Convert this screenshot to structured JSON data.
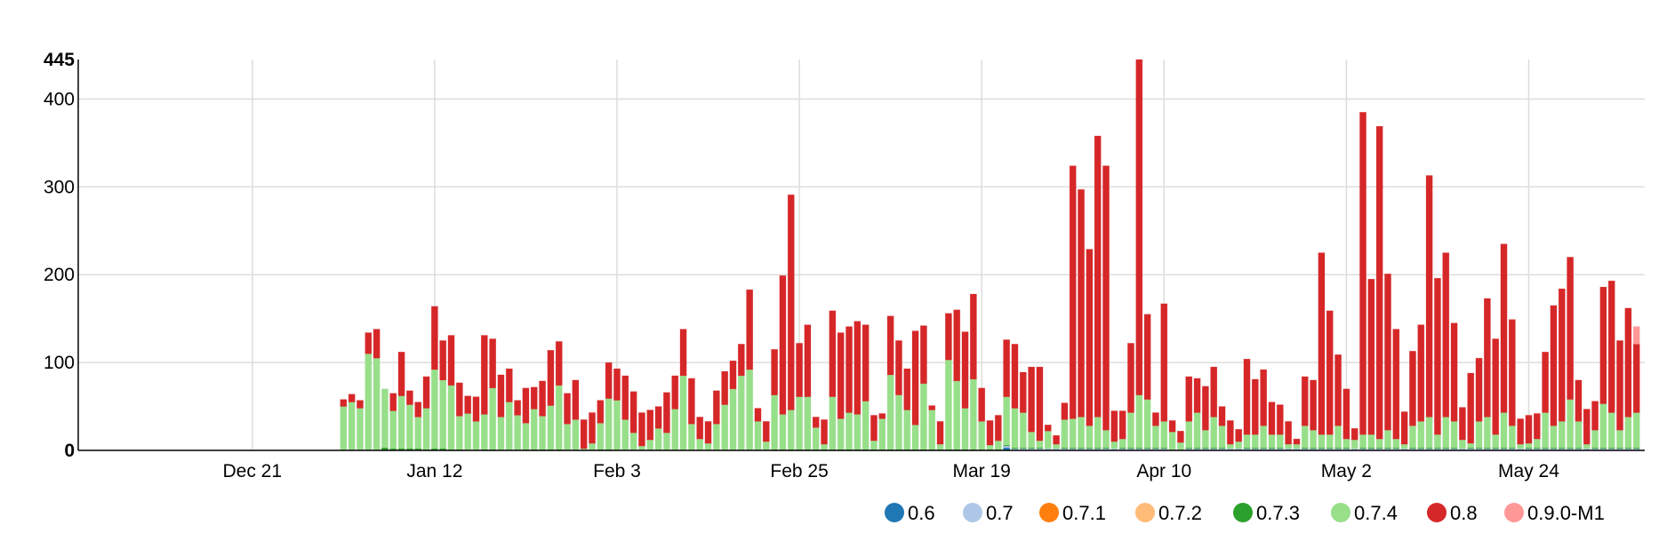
{
  "chart_data": {
    "type": "bar",
    "stacked": true,
    "title": "",
    "xlabel": "",
    "ylabel": "",
    "ylim": [
      0,
      445
    ],
    "y_ticks": [
      0,
      100,
      200,
      300,
      400,
      445
    ],
    "y_tick_labels": [
      "0",
      "100",
      "200",
      "300",
      "400",
      "445"
    ],
    "x_start_date": "2014-11-30",
    "x_end_date": "2015-06-07",
    "x_ticks": [
      {
        "date": "2014-12-21",
        "label": "Dec 21"
      },
      {
        "date": "2015-01-12",
        "label": "Jan 12"
      },
      {
        "date": "2015-02-03",
        "label": "Feb 3"
      },
      {
        "date": "2015-02-25",
        "label": "Feb 25"
      },
      {
        "date": "2015-03-19",
        "label": "Mar 19"
      },
      {
        "date": "2015-04-10",
        "label": "Apr 10"
      },
      {
        "date": "2015-05-02",
        "label": "May 2"
      },
      {
        "date": "2015-05-24",
        "label": "May 24"
      }
    ],
    "grid": true,
    "legend_position": "bottom-right",
    "series_colors": {
      "0.6": "#1f77b4",
      "0.7": "#aec7e8",
      "0.7.1": "#ff7f0e",
      "0.7.2": "#ffbb78",
      "0.7.3": "#2ca02c",
      "0.7.4": "#98df8a",
      "0.8": "#d62728",
      "0.9.0-M1": "#ff9896"
    },
    "series_order": [
      "0.6",
      "0.7",
      "0.7.1",
      "0.7.2",
      "0.7.3",
      "0.7.4",
      "0.8",
      "0.9.0-M1"
    ],
    "points": [
      {
        "date": "2015-01-01",
        "0.7.4": 50,
        "0.8": 8
      },
      {
        "date": "2015-01-02",
        "0.7.4": 55,
        "0.8": 9
      },
      {
        "date": "2015-01-03",
        "0.7.4": 48,
        "0.8": 9
      },
      {
        "date": "2015-01-04",
        "0.7.4": 110,
        "0.8": 24
      },
      {
        "date": "2015-01-05",
        "0.7.4": 105,
        "0.8": 33
      },
      {
        "date": "2015-01-06",
        "0.7.3": 3,
        "0.7.4": 67,
        "0.8": 0
      },
      {
        "date": "2015-01-07",
        "0.7.3": 2,
        "0.7.4": 43,
        "0.8": 20
      },
      {
        "date": "2015-01-08",
        "0.7.3": 2,
        "0.7.4": 60,
        "0.8": 50
      },
      {
        "date": "2015-01-09",
        "0.7.3": 2,
        "0.7.4": 50,
        "0.8": 16
      },
      {
        "date": "2015-01-10",
        "0.7.3": 2,
        "0.7.4": 36,
        "0.8": 17
      },
      {
        "date": "2015-01-11",
        "0.7.3": 1,
        "0.7.4": 47,
        "0.8": 36
      },
      {
        "date": "2015-01-12",
        "0.7.3": 2,
        "0.7.4": 90,
        "0.8": 72
      },
      {
        "date": "2015-01-13",
        "0.7.3": 2,
        "0.7.4": 78,
        "0.8": 45
      },
      {
        "date": "2015-01-14",
        "0.7.3": 1,
        "0.7.4": 73,
        "0.8": 57
      },
      {
        "date": "2015-01-15",
        "0.7.3": 1,
        "0.7.4": 38,
        "0.8": 38
      },
      {
        "date": "2015-01-16",
        "0.7.4": 42,
        "0.8": 20
      },
      {
        "date": "2015-01-17",
        "0.7.4": 33,
        "0.8": 28
      },
      {
        "date": "2015-01-18",
        "0.7.3": 1,
        "0.7.4": 40,
        "0.8": 90
      },
      {
        "date": "2015-01-19",
        "0.7.3": 1,
        "0.7.4": 70,
        "0.8": 56
      },
      {
        "date": "2015-01-20",
        "0.7.4": 38,
        "0.8": 48
      },
      {
        "date": "2015-01-21",
        "0.7.4": 55,
        "0.8": 38
      },
      {
        "date": "2015-01-22",
        "0.7.4": 40,
        "0.8": 17
      },
      {
        "date": "2015-01-23",
        "0.7.3": 1,
        "0.7.4": 30,
        "0.8": 40
      },
      {
        "date": "2015-01-24",
        "0.7.3": 1,
        "0.7.4": 46,
        "0.8": 25
      },
      {
        "date": "2015-01-25",
        "0.7.3": 1,
        "0.7.4": 38,
        "0.8": 40
      },
      {
        "date": "2015-01-26",
        "0.7.3": 1,
        "0.7.4": 50,
        "0.8": 63
      },
      {
        "date": "2015-01-27",
        "0.7.3": 1,
        "0.7.4": 73,
        "0.8": 50
      },
      {
        "date": "2015-01-28",
        "0.7.4": 30,
        "0.8": 35
      },
      {
        "date": "2015-01-29",
        "0.7.4": 35,
        "0.8": 45
      },
      {
        "date": "2015-01-30",
        "0.7.4": 2,
        "0.8": 33
      },
      {
        "date": "2015-01-31",
        "0.7.4": 8,
        "0.8": 35
      },
      {
        "date": "2015-02-01",
        "0.7.3": 1,
        "0.7.4": 30,
        "0.8": 26
      },
      {
        "date": "2015-02-02",
        "0.7.3": 1,
        "0.7.4": 58,
        "0.8": 41
      },
      {
        "date": "2015-02-03",
        "0.7.4": 57,
        "0.8": 36
      },
      {
        "date": "2015-02-04",
        "0.7.4": 35,
        "0.8": 50
      },
      {
        "date": "2015-02-05",
        "0.7.4": 20,
        "0.8": 47
      },
      {
        "date": "2015-02-06",
        "0.7.4": 5,
        "0.8": 38
      },
      {
        "date": "2015-02-07",
        "0.7.4": 12,
        "0.8": 34
      },
      {
        "date": "2015-02-08",
        "0.7.4": 25,
        "0.8": 25
      },
      {
        "date": "2015-02-09",
        "0.7.4": 20,
        "0.8": 46
      },
      {
        "date": "2015-02-10",
        "0.7.4": 47,
        "0.8": 38
      },
      {
        "date": "2015-02-11",
        "0.7.4": 85,
        "0.8": 53
      },
      {
        "date": "2015-02-12",
        "0.7.4": 30,
        "0.8": 52
      },
      {
        "date": "2015-02-13",
        "0.7.4": 13,
        "0.8": 25
      },
      {
        "date": "2015-02-14",
        "0.7.4": 8,
        "0.8": 25
      },
      {
        "date": "2015-02-15",
        "0.7.4": 30,
        "0.8": 38
      },
      {
        "date": "2015-02-16",
        "0.7.4": 52,
        "0.8": 38
      },
      {
        "date": "2015-02-17",
        "0.7.4": 70,
        "0.8": 32
      },
      {
        "date": "2015-02-18",
        "0.7.4": 85,
        "0.8": 36
      },
      {
        "date": "2015-02-19",
        "0.7.4": 92,
        "0.8": 91
      },
      {
        "date": "2015-02-20",
        "0.7.4": 33,
        "0.8": 15
      },
      {
        "date": "2015-02-21",
        "0.7.4": 10,
        "0.8": 23
      },
      {
        "date": "2015-02-22",
        "0.7.3": 1,
        "0.7.4": 62,
        "0.8": 52
      },
      {
        "date": "2015-02-23",
        "0.7.3": 1,
        "0.7.4": 40,
        "0.8": 158
      },
      {
        "date": "2015-02-24",
        "0.7.3": 1,
        "0.7.4": 45,
        "0.8": 245
      },
      {
        "date": "2015-02-25",
        "0.7.3": 1,
        "0.7.4": 60,
        "0.8": 61
      },
      {
        "date": "2015-02-26",
        "0.7.3": 1,
        "0.7.4": 60,
        "0.8": 82
      },
      {
        "date": "2015-02-27",
        "0.7.3": 1,
        "0.7.4": 25,
        "0.8": 12
      },
      {
        "date": "2015-02-28",
        "0.7.3": 1,
        "0.7.4": 6,
        "0.8": 28
      },
      {
        "date": "2015-03-01",
        "0.7.3": 1,
        "0.7.4": 60,
        "0.8": 98
      },
      {
        "date": "2015-03-02",
        "0.7.3": 1,
        "0.7.4": 35,
        "0.8": 98
      },
      {
        "date": "2015-03-03",
        "0.7.3": 1,
        "0.7.4": 42,
        "0.8": 98
      },
      {
        "date": "2015-03-04",
        "0.7.3": 1,
        "0.7.4": 40,
        "0.8": 106
      },
      {
        "date": "2015-03-05",
        "0.7.3": 1,
        "0.7.4": 55,
        "0.8": 87
      },
      {
        "date": "2015-03-06",
        "0.7.3": 1,
        "0.7.4": 10,
        "0.8": 29
      },
      {
        "date": "2015-03-07",
        "0.7.3": 1,
        "0.7.4": 35,
        "0.8": 6
      },
      {
        "date": "2015-03-08",
        "0.7.3": 1,
        "0.7.4": 85,
        "0.8": 67
      },
      {
        "date": "2015-03-09",
        "0.7.3": 1,
        "0.7.4": 62,
        "0.8": 62
      },
      {
        "date": "2015-03-10",
        "0.7.3": 1,
        "0.7.4": 45,
        "0.8": 47
      },
      {
        "date": "2015-03-11",
        "0.7.3": 1,
        "0.7.4": 28,
        "0.8": 107
      },
      {
        "date": "2015-03-12",
        "0.7.3": 1,
        "0.7.4": 75,
        "0.8": 66
      },
      {
        "date": "2015-03-13",
        "0.7.3": 1,
        "0.7.4": 45,
        "0.8": 5
      },
      {
        "date": "2015-03-14",
        "0.7.3": 1,
        "0.7.4": 6,
        "0.8": 26
      },
      {
        "date": "2015-03-15",
        "0.7.3": 1,
        "0.7.4": 102,
        "0.8": 53
      },
      {
        "date": "2015-03-16",
        "0.7.3": 1,
        "0.7.4": 78,
        "0.8": 81
      },
      {
        "date": "2015-03-17",
        "0.7.3": 1,
        "0.7.4": 47,
        "0.8": 87
      },
      {
        "date": "2015-03-18",
        "0.7.3": 1,
        "0.7.4": 80,
        "0.8": 97
      },
      {
        "date": "2015-03-19",
        "0.7.3": 1,
        "0.7.4": 32,
        "0.8": 38
      },
      {
        "date": "2015-03-20",
        "0.7.3": 1,
        "0.7.4": 5,
        "0.8": 28
      },
      {
        "date": "2015-03-21",
        "0.7.3": 1,
        "0.7.4": 10,
        "0.8": 29
      },
      {
        "date": "2015-03-22",
        "0.6": 3,
        "0.7": 2,
        "0.7.3": 1,
        "0.7.4": 55,
        "0.8": 65
      },
      {
        "date": "2015-03-23",
        "0.7": 2,
        "0.7.3": 1,
        "0.7.4": 45,
        "0.8": 73
      },
      {
        "date": "2015-03-24",
        "0.7": 2,
        "0.7.3": 1,
        "0.7.4": 40,
        "0.8": 46
      },
      {
        "date": "2015-03-25",
        "0.7": 2,
        "0.7.3": 1,
        "0.7.4": 18,
        "0.8": 74
      },
      {
        "date": "2015-03-26",
        "0.7": 2,
        "0.7.3": 1,
        "0.7.4": 8,
        "0.8": 84
      },
      {
        "date": "2015-03-27",
        "0.7": 2,
        "0.7.4": 20,
        "0.8": 7
      },
      {
        "date": "2015-03-28",
        "0.7": 2,
        "0.7.4": 5,
        "0.8": 10
      },
      {
        "date": "2015-03-29",
        "0.7": 2,
        "0.7.3": 1,
        "0.7.4": 32,
        "0.8": 19
      },
      {
        "date": "2015-03-30",
        "0.7": 2,
        "0.7.3": 1,
        "0.7.4": 33,
        "0.8": 288
      },
      {
        "date": "2015-03-31",
        "0.7": 2,
        "0.7.3": 1,
        "0.7.4": 35,
        "0.8": 259
      },
      {
        "date": "2015-04-01",
        "0.7": 2,
        "0.7.3": 1,
        "0.7.4": 25,
        "0.8": 201
      },
      {
        "date": "2015-04-02",
        "0.7": 2,
        "0.7.3": 1,
        "0.7.4": 35,
        "0.8": 320
      },
      {
        "date": "2015-04-03",
        "0.7": 2,
        "0.7.3": 1,
        "0.7.4": 20,
        "0.8": 301
      },
      {
        "date": "2015-04-04",
        "0.7": 2,
        "0.7.4": 8,
        "0.8": 35
      },
      {
        "date": "2015-04-05",
        "0.7": 2,
        "0.7.3": 1,
        "0.7.4": 10,
        "0.8": 32
      },
      {
        "date": "2015-04-06",
        "0.7": 2,
        "0.7.3": 1,
        "0.7.4": 40,
        "0.8": 79
      },
      {
        "date": "2015-04-07",
        "0.7": 2,
        "0.7.3": 1,
        "0.7.4": 60,
        "0.8": 382
      },
      {
        "date": "2015-04-08",
        "0.7": 2,
        "0.7.3": 1,
        "0.7.4": 55,
        "0.8": 97
      },
      {
        "date": "2015-04-09",
        "0.7": 2,
        "0.7.3": 1,
        "0.7.4": 25,
        "0.8": 15
      },
      {
        "date": "2015-04-10",
        "0.7": 2,
        "0.7.3": 1,
        "0.7.4": 30,
        "0.8": 134
      },
      {
        "date": "2015-04-11",
        "0.7": 1,
        "0.7.4": 20,
        "0.8": 13
      },
      {
        "date": "2015-04-12",
        "0.7": 1,
        "0.7.4": 8,
        "0.8": 13
      },
      {
        "date": "2015-04-13",
        "0.7": 2,
        "0.7.3": 1,
        "0.7.4": 30,
        "0.8": 51
      },
      {
        "date": "2015-04-14",
        "0.7": 2,
        "0.7.3": 1,
        "0.7.4": 40,
        "0.8": 39
      },
      {
        "date": "2015-04-15",
        "0.7": 2,
        "0.7.3": 1,
        "0.7.4": 20,
        "0.8": 50
      },
      {
        "date": "2015-04-16",
        "0.7": 2,
        "0.7.3": 1,
        "0.7.4": 35,
        "0.8": 57
      },
      {
        "date": "2015-04-17",
        "0.7": 2,
        "0.7.3": 1,
        "0.7.4": 25,
        "0.8": 22
      },
      {
        "date": "2015-04-18",
        "0.7": 2,
        "0.7.4": 5,
        "0.8": 27
      },
      {
        "date": "2015-04-19",
        "0.7": 2,
        "0.7.4": 8,
        "0.8": 14
      },
      {
        "date": "2015-04-20",
        "0.7": 2,
        "0.7.3": 1,
        "0.7.4": 15,
        "0.8": 86
      },
      {
        "date": "2015-04-21",
        "0.7": 2,
        "0.7.3": 1,
        "0.7.4": 15,
        "0.8": 63
      },
      {
        "date": "2015-04-22",
        "0.7": 2,
        "0.7.3": 1,
        "0.7.4": 25,
        "0.8": 64
      },
      {
        "date": "2015-04-23",
        "0.7": 2,
        "0.7.3": 1,
        "0.7.4": 15,
        "0.8": 37
      },
      {
        "date": "2015-04-24",
        "0.7": 2,
        "0.7.3": 1,
        "0.7.4": 15,
        "0.8": 34
      },
      {
        "date": "2015-04-25",
        "0.7": 2,
        "0.7.4": 5,
        "0.8": 26
      },
      {
        "date": "2015-04-26",
        "0.7": 2,
        "0.7.4": 5,
        "0.8": 6
      },
      {
        "date": "2015-04-27",
        "0.7": 2,
        "0.7.3": 1,
        "0.7.4": 25,
        "0.8": 56
      },
      {
        "date": "2015-04-28",
        "0.7": 2,
        "0.7.3": 1,
        "0.7.4": 20,
        "0.8": 57
      },
      {
        "date": "2015-04-29",
        "0.7": 2,
        "0.7.3": 1,
        "0.7.4": 15,
        "0.8": 207
      },
      {
        "date": "2015-04-30",
        "0.7": 2,
        "0.7.3": 1,
        "0.7.4": 15,
        "0.8": 141
      },
      {
        "date": "2015-05-01",
        "0.7": 2,
        "0.7.3": 1,
        "0.7.4": 25,
        "0.8": 81
      },
      {
        "date": "2015-05-02",
        "0.7": 2,
        "0.7.3": 1,
        "0.7.4": 10,
        "0.8": 57
      },
      {
        "date": "2015-05-03",
        "0.7": 2,
        "0.7.4": 10,
        "0.8": 13
      },
      {
        "date": "2015-05-04",
        "0.7": 2,
        "0.7.3": 1,
        "0.7.4": 15,
        "0.8": 367
      },
      {
        "date": "2015-05-05",
        "0.7": 2,
        "0.7.3": 1,
        "0.7.4": 15,
        "0.8": 177
      },
      {
        "date": "2015-05-06",
        "0.7": 2,
        "0.7.3": 1,
        "0.7.4": 10,
        "0.8": 356
      },
      {
        "date": "2015-05-07",
        "0.7": 2,
        "0.7.3": 1,
        "0.7.4": 20,
        "0.8": 178
      },
      {
        "date": "2015-05-08",
        "0.7": 2,
        "0.7.3": 1,
        "0.7.4": 10,
        "0.8": 125
      },
      {
        "date": "2015-05-09",
        "0.7": 2,
        "0.7.4": 5,
        "0.8": 37
      },
      {
        "date": "2015-05-10",
        "0.7": 2,
        "0.7.3": 1,
        "0.7.4": 25,
        "0.8": 85
      },
      {
        "date": "2015-05-11",
        "0.7": 2,
        "0.7.3": 1,
        "0.7.4": 30,
        "0.8": 110
      },
      {
        "date": "2015-05-12",
        "0.7": 2,
        "0.7.3": 1,
        "0.7.4": 35,
        "0.8": 275
      },
      {
        "date": "2015-05-13",
        "0.7": 2,
        "0.7.3": 1,
        "0.7.4": 15,
        "0.8": 178
      },
      {
        "date": "2015-05-14",
        "0.7": 2,
        "0.7.3": 1,
        "0.7.4": 35,
        "0.8": 187
      },
      {
        "date": "2015-05-15",
        "0.7": 2,
        "0.7.3": 1,
        "0.7.4": 30,
        "0.8": 112
      },
      {
        "date": "2015-05-16",
        "0.7": 2,
        "0.7.4": 10,
        "0.8": 37
      },
      {
        "date": "2015-05-17",
        "0.7": 2,
        "0.7.3": 1,
        "0.7.4": 5,
        "0.8": 80
      },
      {
        "date": "2015-05-18",
        "0.7": 2,
        "0.7.3": 1,
        "0.7.4": 30,
        "0.8": 72
      },
      {
        "date": "2015-05-19",
        "0.7": 2,
        "0.7.3": 1,
        "0.7.4": 35,
        "0.8": 135
      },
      {
        "date": "2015-05-20",
        "0.7": 2,
        "0.7.3": 1,
        "0.7.4": 15,
        "0.8": 109
      },
      {
        "date": "2015-05-21",
        "0.7": 2,
        "0.7.3": 1,
        "0.7.4": 40,
        "0.8": 192
      },
      {
        "date": "2015-05-22",
        "0.7": 2,
        "0.7.3": 1,
        "0.7.4": 25,
        "0.8": 121
      },
      {
        "date": "2015-05-23",
        "0.7": 2,
        "0.7.4": 5,
        "0.8": 29
      },
      {
        "date": "2015-05-24",
        "0.7": 2,
        "0.7.3": 1,
        "0.7.4": 5,
        "0.8": 32
      },
      {
        "date": "2015-05-25",
        "0.7": 2,
        "0.7.3": 1,
        "0.7.4": 10,
        "0.8": 29
      },
      {
        "date": "2015-05-26",
        "0.7": 2,
        "0.7.3": 1,
        "0.7.4": 40,
        "0.8": 69
      },
      {
        "date": "2015-05-27",
        "0.7": 2,
        "0.7.3": 1,
        "0.7.4": 25,
        "0.8": 137
      },
      {
        "date": "2015-05-28",
        "0.7": 2,
        "0.7.3": 1,
        "0.7.4": 30,
        "0.8": 151
      },
      {
        "date": "2015-05-29",
        "0.7": 2,
        "0.7.3": 1,
        "0.7.4": 55,
        "0.8": 162
      },
      {
        "date": "2015-05-30",
        "0.7": 2,
        "0.7.3": 1,
        "0.7.4": 30,
        "0.8": 47
      },
      {
        "date": "2015-05-31",
        "0.7": 2,
        "0.7.4": 5,
        "0.8": 40
      },
      {
        "date": "2015-06-01",
        "0.7": 2,
        "0.7.3": 1,
        "0.7.4": 20,
        "0.8": 33
      },
      {
        "date": "2015-06-02",
        "0.7": 2,
        "0.7.3": 1,
        "0.7.4": 50,
        "0.8": 133
      },
      {
        "date": "2015-06-03",
        "0.7": 2,
        "0.7.3": 1,
        "0.7.4": 40,
        "0.8": 150
      },
      {
        "date": "2015-06-04",
        "0.7": 2,
        "0.7.3": 1,
        "0.7.4": 20,
        "0.8": 102
      },
      {
        "date": "2015-06-05",
        "0.7": 2,
        "0.7.3": 1,
        "0.7.4": 35,
        "0.8": 124
      },
      {
        "date": "2015-06-06",
        "0.7": 2,
        "0.7.3": 1,
        "0.7.4": 40,
        "0.8": 78,
        "0.9.0-M1": 20
      }
    ]
  },
  "legend": {
    "items": [
      {
        "label": "0.6",
        "color": "#1f77b4"
      },
      {
        "label": "0.7",
        "color": "#aec7e8"
      },
      {
        "label": "0.7.1",
        "color": "#ff7f0e"
      },
      {
        "label": "0.7.2",
        "color": "#ffbb78"
      },
      {
        "label": "0.7.3",
        "color": "#2ca02c"
      },
      {
        "label": "0.7.4",
        "color": "#98df8a"
      },
      {
        "label": "0.8",
        "color": "#d62728"
      },
      {
        "label": "0.9.0-M1",
        "color": "#ff9896"
      }
    ]
  },
  "colors": {
    "grid": "#dddddd",
    "axis": "#000000"
  }
}
